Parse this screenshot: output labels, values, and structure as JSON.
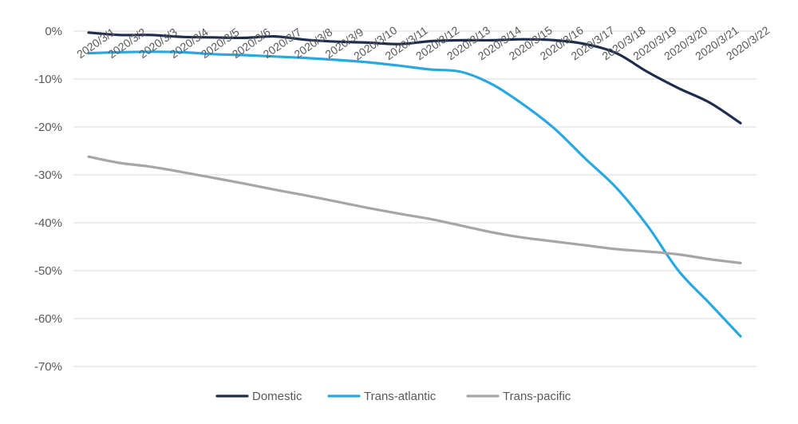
{
  "chart_data": {
    "type": "line",
    "title": "",
    "xlabel": "",
    "ylabel": "",
    "categories": [
      "2020/3/1",
      "2020/3/2",
      "2020/3/3",
      "2020/3/4",
      "2020/3/5",
      "2020/3/6",
      "2020/3/7",
      "2020/3/8",
      "2020/3/9",
      "2020/3/10",
      "2020/3/11",
      "2020/3/12",
      "2020/3/13",
      "2020/3/14",
      "2020/3/15",
      "2020/3/16",
      "2020/3/17",
      "2020/3/18",
      "2020/3/19",
      "2020/3/20",
      "2020/3/21",
      "2020/3/22"
    ],
    "ylim": [
      -70,
      0
    ],
    "yticks": [
      0,
      -10,
      -20,
      -30,
      -40,
      -50,
      -60,
      -70
    ],
    "ytick_labels": [
      "0%",
      "-10%",
      "-20%",
      "-30%",
      "-40%",
      "-50%",
      "-60%",
      "-70%"
    ],
    "grid": true,
    "legend_position": "bottom",
    "series": [
      {
        "name": "Domestic",
        "color": "#1f2d4d",
        "values": [
          -0.3,
          -0.8,
          -0.8,
          -1.2,
          -1.3,
          -1.4,
          -1.1,
          -1.8,
          -2.2,
          -2.4,
          -2.7,
          -2.1,
          -1.9,
          -1.9,
          -1.7,
          -1.9,
          -2.7,
          -4.6,
          -8.5,
          -11.9,
          -14.9,
          -19.2
        ]
      },
      {
        "name": "Trans-atlantic",
        "color": "#29a8e0",
        "values": [
          -4.6,
          -4.4,
          -4.3,
          -4.4,
          -4.8,
          -5.0,
          -5.3,
          -5.6,
          -6.0,
          -6.5,
          -7.2,
          -8.0,
          -8.5,
          -11.1,
          -15.3,
          -20.3,
          -26.6,
          -32.7,
          -40.6,
          -50.0,
          -56.8,
          -63.7
        ]
      },
      {
        "name": "Trans-pacific",
        "color": "#a6a6a6",
        "values": [
          -26.2,
          -27.5,
          -28.3,
          -29.4,
          -30.6,
          -31.8,
          -33.1,
          -34.3,
          -35.6,
          -36.9,
          -38.1,
          -39.2,
          -40.6,
          -42.0,
          -43.1,
          -43.9,
          -44.7,
          -45.5,
          -46.0,
          -46.6,
          -47.6,
          -48.4
        ]
      }
    ]
  }
}
